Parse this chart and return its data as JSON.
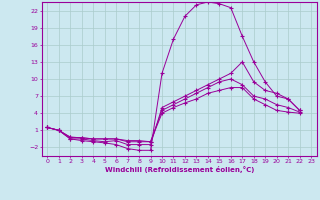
{
  "xlabel": "Windchill (Refroidissement éolien,°C)",
  "bg_color": "#cce8f0",
  "line_color": "#990099",
  "grid_color": "#aacccc",
  "xlim": [
    -0.5,
    23.5
  ],
  "ylim": [
    -3.5,
    23.5
  ],
  "xticks": [
    0,
    1,
    2,
    3,
    4,
    5,
    6,
    7,
    8,
    9,
    10,
    11,
    12,
    13,
    14,
    15,
    16,
    17,
    18,
    19,
    20,
    21,
    22,
    23
  ],
  "yticks": [
    -2,
    1,
    4,
    7,
    10,
    13,
    16,
    19,
    22
  ],
  "lines": [
    {
      "x": [
        0,
        1,
        2,
        3,
        4,
        5,
        6,
        7,
        8,
        9,
        10,
        11,
        12,
        13,
        14,
        15,
        16,
        17,
        18,
        19,
        20,
        21,
        22
      ],
      "y": [
        1.5,
        1.0,
        -0.5,
        -0.8,
        -1.0,
        -1.2,
        -1.5,
        -2.2,
        -2.5,
        -2.5,
        11.0,
        17.0,
        21.0,
        23.0,
        23.5,
        23.2,
        22.5,
        17.5,
        13.0,
        9.5,
        7.0,
        6.5,
        4.5
      ]
    },
    {
      "x": [
        0,
        1,
        2,
        3,
        4,
        5,
        6,
        7,
        8,
        9,
        10,
        11,
        12,
        13,
        14,
        15,
        16,
        17,
        18,
        19,
        20,
        21,
        22
      ],
      "y": [
        1.5,
        1.0,
        -0.5,
        -0.5,
        -0.8,
        -1.0,
        -0.8,
        -1.5,
        -1.5,
        -1.5,
        5.0,
        6.0,
        7.0,
        8.0,
        9.0,
        10.0,
        11.0,
        13.0,
        9.5,
        8.0,
        7.5,
        6.5,
        4.5
      ]
    },
    {
      "x": [
        0,
        1,
        2,
        3,
        4,
        5,
        6,
        7,
        8,
        9,
        10,
        11,
        12,
        13,
        14,
        15,
        16,
        17,
        18,
        19,
        20,
        21,
        22
      ],
      "y": [
        1.5,
        1.0,
        -0.2,
        -0.3,
        -0.5,
        -0.5,
        -0.5,
        -1.0,
        -1.0,
        -1.0,
        4.5,
        5.5,
        6.5,
        7.5,
        8.5,
        9.5,
        10.0,
        9.0,
        7.0,
        6.5,
        5.5,
        5.0,
        4.2
      ]
    },
    {
      "x": [
        0,
        1,
        2,
        3,
        4,
        5,
        6,
        7,
        8,
        9,
        10,
        11,
        12,
        13,
        14,
        15,
        16,
        17,
        18,
        19,
        20,
        21,
        22
      ],
      "y": [
        1.5,
        1.0,
        -0.2,
        -0.3,
        -0.5,
        -0.5,
        -0.5,
        -0.8,
        -0.8,
        -1.0,
        4.0,
        5.0,
        5.8,
        6.5,
        7.5,
        8.0,
        8.5,
        8.5,
        6.5,
        5.5,
        4.5,
        4.2,
        4.0
      ]
    }
  ]
}
